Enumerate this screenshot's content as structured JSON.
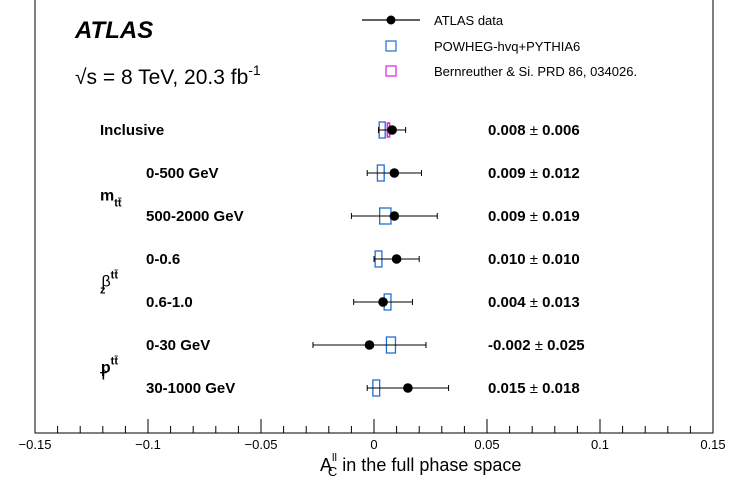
{
  "chart_data": {
    "type": "scatter",
    "experiment_label": "ATLAS",
    "energy_label": {
      "sqrt": "√s = 8 TeV",
      "lumi": ", 20.3 fb",
      "lumi_exp": "-1"
    },
    "xlabel": {
      "main": "A",
      "sup": "ll",
      "sub": "C",
      "rest": " in the full phase space"
    },
    "xlim": [
      -0.15,
      0.15
    ],
    "xticks": [
      -0.15,
      -0.1,
      -0.05,
      0,
      0.05,
      0.1,
      0.15
    ],
    "xtick_labels": [
      "−0.15",
      "−0.1",
      "−0.05",
      "0",
      "0.05",
      "0.1",
      "0.15"
    ],
    "legend": {
      "placement": "top-right",
      "entries": [
        {
          "label": "ATLAS data",
          "marker": "filled-circle-errorbar",
          "color": "#000000"
        },
        {
          "label": "POWHEG-hvq+PYTHIA6",
          "marker": "open-square",
          "color": "#1f6fd0"
        },
        {
          "label": "Bernreuther & Si. PRD 86, 034026.",
          "marker": "open-square",
          "color": "#e020e0"
        }
      ]
    },
    "groups": [
      {
        "symbol": "m",
        "sub": "tt̄",
        "sup": "",
        "rows": [
          1,
          2
        ]
      },
      {
        "symbol": "β",
        "sub": "z",
        "sup": "tt̄",
        "rows": [
          3,
          4
        ]
      },
      {
        "symbol": "p",
        "sub": "T",
        "sup": "tt̄",
        "rows": [
          5,
          6
        ]
      }
    ],
    "rows": [
      {
        "label": "Inclusive",
        "data": 0.008,
        "err": 0.006,
        "powheg": 0.0035,
        "powheg_unc": 0.0012,
        "theory": 0.0064,
        "theory_unc": 0.0005,
        "value_text": "0.008",
        "err_text": "0.006"
      },
      {
        "label": "0-500 GeV",
        "data": 0.009,
        "err": 0.012,
        "powheg": 0.003,
        "powheg_unc": 0.0015,
        "value_text": "0.009",
        "err_text": "0.012"
      },
      {
        "label": "500-2000 GeV",
        "data": 0.009,
        "err": 0.019,
        "powheg": 0.005,
        "powheg_unc": 0.0025,
        "value_text": "0.009",
        "err_text": "0.019"
      },
      {
        "label": "0-0.6",
        "data": 0.01,
        "err": 0.01,
        "powheg": 0.002,
        "powheg_unc": 0.0015,
        "value_text": "0.010",
        "err_text": "0.010"
      },
      {
        "label": "0.6-1.0",
        "data": 0.004,
        "err": 0.013,
        "powheg": 0.006,
        "powheg_unc": 0.0015,
        "value_text": "0.004",
        "err_text": "0.013"
      },
      {
        "label": "0-30 GeV",
        "data": -0.002,
        "err": 0.025,
        "powheg": 0.0075,
        "powheg_unc": 0.002,
        "value_text": "-0.002",
        "err_text": "0.025"
      },
      {
        "label": "30-1000 GeV",
        "data": 0.015,
        "err": 0.018,
        "powheg": 0.001,
        "powheg_unc": 0.0015,
        "value_text": "0.015",
        "err_text": "0.018"
      }
    ],
    "pm_symbol": "±",
    "colors": {
      "data": "#000000",
      "powheg": "#1f6fd0",
      "theory": "#e020e0",
      "axis": "#000000"
    }
  }
}
